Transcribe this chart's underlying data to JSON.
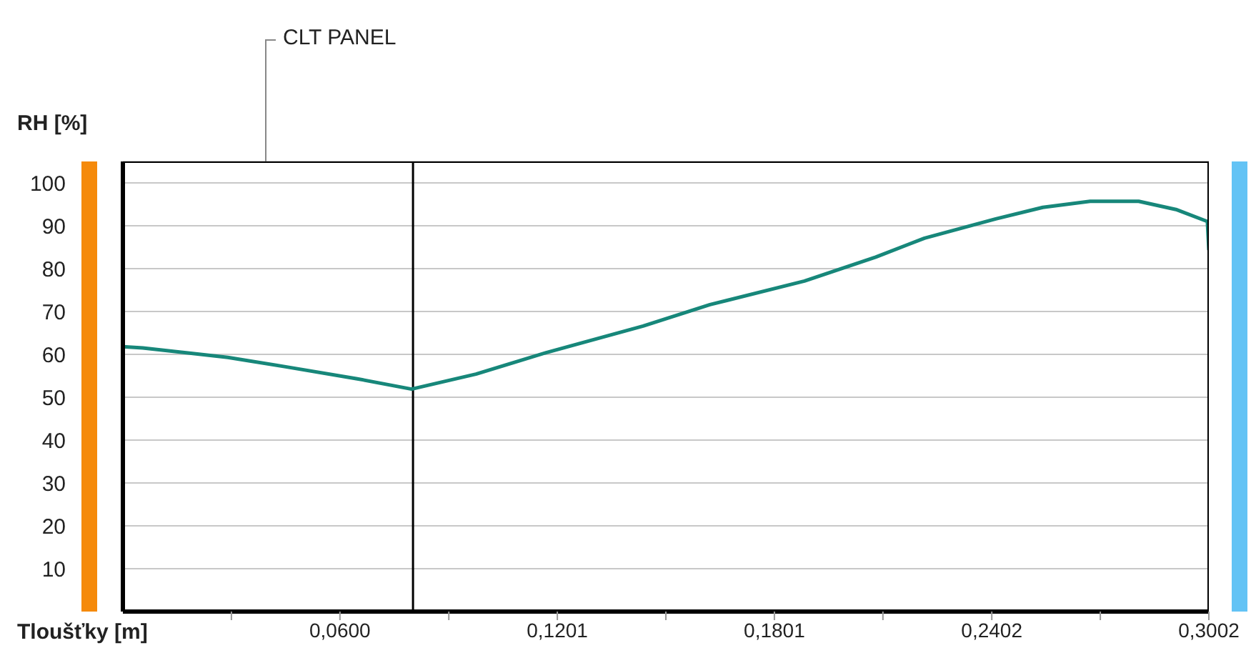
{
  "chart_data": {
    "type": "line",
    "xlabel": "Tloušťky [m]",
    "ylabel": "RH [%]",
    "series": [
      {
        "color": "#17877a",
        "x": [
          0,
          0.0055,
          0.029,
          0.045,
          0.0648,
          0.0798,
          0.0976,
          0.117,
          0.1438,
          0.1623,
          0.1884,
          0.2081,
          0.2216,
          0.2413,
          0.2543,
          0.2674,
          0.2808,
          0.2911,
          0.2998,
          0.3002
        ],
        "values": [
          61.8,
          61.5,
          59.3,
          57.1,
          54.3,
          51.9,
          55.4,
          60.4,
          66.6,
          71.6,
          77.1,
          82.7,
          87.1,
          91.6,
          94.3,
          95.7,
          95.7,
          93.8,
          91,
          84.3
        ]
      }
    ],
    "xlim": [
      0,
      0.3002
    ],
    "xticks": [
      {
        "value": 0.03,
        "label": null
      },
      {
        "value": 0.06,
        "label": "0,0600"
      },
      {
        "value": 0.0901,
        "label": null
      },
      {
        "value": 0.1201,
        "label": "0,1201"
      },
      {
        "value": 0.1501,
        "label": null
      },
      {
        "value": 0.1801,
        "label": "0,1801"
      },
      {
        "value": 0.2101,
        "label": null
      },
      {
        "value": 0.2402,
        "label": "0,2402"
      },
      {
        "value": 0.2702,
        "label": null
      },
      {
        "value": 0.3002,
        "label": "0,3002"
      }
    ],
    "ylim": [
      0,
      105
    ],
    "yticks": [
      10,
      20,
      30,
      40,
      50,
      60,
      70,
      80,
      90,
      100
    ],
    "grid": "y",
    "marker": "none",
    "line_style": "solid",
    "ref_lines": [
      {
        "axis": "x",
        "value": 0.0802,
        "color": "#000000"
      }
    ],
    "annotations": [
      "CLT PANEL"
    ]
  }
}
